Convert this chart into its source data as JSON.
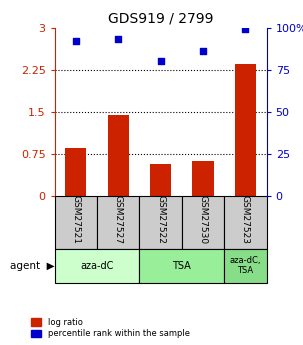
{
  "title": "GDS919 / 2799",
  "samples": [
    "GSM27521",
    "GSM27527",
    "GSM27522",
    "GSM27530",
    "GSM27523"
  ],
  "log_ratios": [
    0.85,
    1.44,
    0.57,
    0.62,
    2.35
  ],
  "percentile_ranks": [
    92,
    93,
    80,
    86,
    99
  ],
  "left_yticks": [
    0,
    0.75,
    1.5,
    2.25,
    3
  ],
  "right_yticks": [
    0,
    25,
    50,
    75,
    100
  ],
  "right_ylabels": [
    "0",
    "25",
    "50",
    "75",
    "100%"
  ],
  "bar_color": "#cc2200",
  "scatter_color": "#0000cc",
  "agent_labels": [
    "aza-dC",
    "TSA",
    "aza-dC,\nTSA"
  ],
  "agent_groups": [
    [
      0,
      1
    ],
    [
      2,
      3
    ],
    [
      4
    ]
  ],
  "agent_colors": [
    "#ccffcc",
    "#99ee99",
    "#88dd88"
  ],
  "sample_bg_color": "#cccccc",
  "grid_color": "#000000",
  "left_yaxis_color": "#cc2200",
  "right_yaxis_color": "#0000cc"
}
